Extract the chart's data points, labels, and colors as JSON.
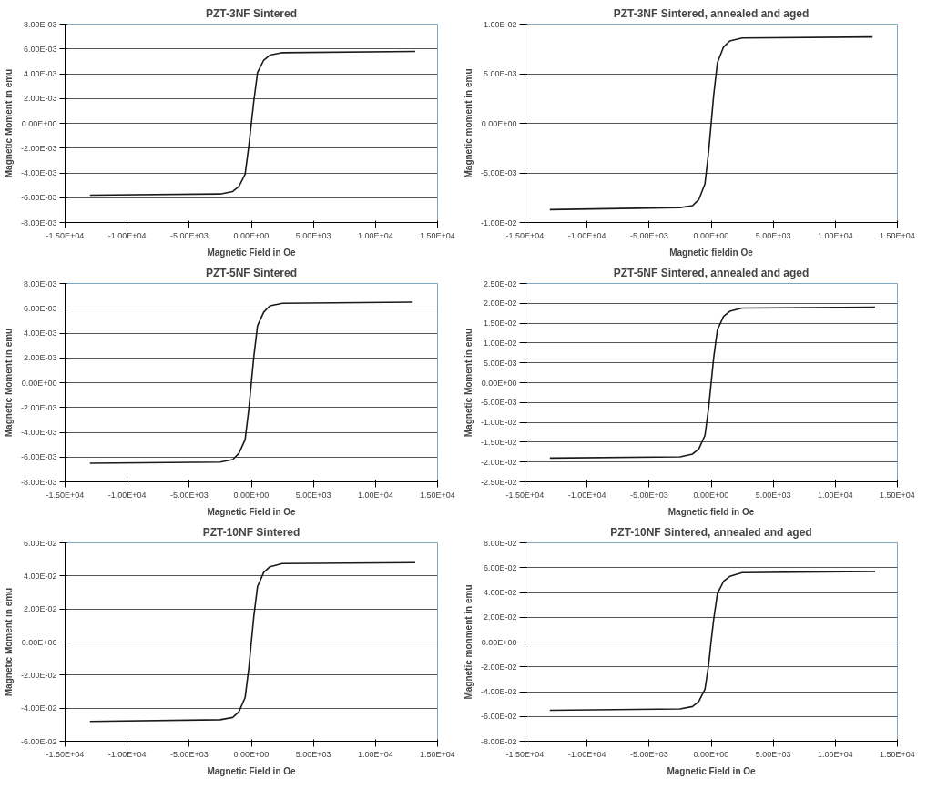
{
  "chart_data": [
    {
      "type": "line",
      "title": "PZT-3NF Sintered",
      "xlabel": "Magnetic Field in Oe",
      "ylabel": "Magnetic Moment in emu",
      "grid": "y",
      "line_style": "solid",
      "xlim": [
        -15000,
        15000
      ],
      "xticks": [
        {
          "value": -15000,
          "label": "-1.50E+04"
        },
        {
          "value": -10000,
          "label": "-1.00E+04"
        },
        {
          "value": -5000,
          "label": "-5.00E+03"
        },
        {
          "value": 0,
          "label": "0.00E+00"
        },
        {
          "value": 5000,
          "label": "5.00E+03"
        },
        {
          "value": 10000,
          "label": "1.00E+04"
        },
        {
          "value": 15000,
          "label": "1.50E+04"
        }
      ],
      "ylim": [
        -0.008,
        0.008
      ],
      "yticks": [
        {
          "value": -0.008,
          "label": "-8.00E-03"
        },
        {
          "value": -0.006,
          "label": "-6.00E-03"
        },
        {
          "value": -0.004,
          "label": "-4.00E-03"
        },
        {
          "value": -0.002,
          "label": "-2.00E-03"
        },
        {
          "value": 0,
          "label": "0.00E+00"
        },
        {
          "value": 0.002,
          "label": "2.00E-03"
        },
        {
          "value": 0.004,
          "label": "4.00E-03"
        },
        {
          "value": 0.006,
          "label": "6.00E-03"
        },
        {
          "value": 0.008,
          "label": "8.00E-03"
        }
      ],
      "series": [
        {
          "color": "#1a1a1a",
          "x": [
            -13000,
            -2500,
            -1500,
            -1000,
            -500,
            -200,
            0,
            200,
            500,
            1000,
            1500,
            2500,
            13200
          ],
          "values": [
            -0.0058,
            -0.0057,
            -0.0055,
            -0.0051,
            -0.0041,
            -0.0018,
            0,
            0.0018,
            0.0041,
            0.0051,
            0.0055,
            0.0057,
            0.0058
          ]
        }
      ]
    },
    {
      "type": "line",
      "title": "PZT-3NF Sintered, annealed and aged",
      "xlabel": "Magnetic fieldin Oe",
      "ylabel": "Magnetic moment in emu",
      "grid": "y",
      "line_style": "solid",
      "xlim": [
        -15000,
        15000
      ],
      "xticks": [
        {
          "value": -15000,
          "label": "-1.50E+04"
        },
        {
          "value": -10000,
          "label": "-1.00E+04"
        },
        {
          "value": -5000,
          "label": "-5.00E+03"
        },
        {
          "value": 0,
          "label": "0.00E+00"
        },
        {
          "value": 5000,
          "label": "5.00E+03"
        },
        {
          "value": 10000,
          "label": "1.00E+04"
        },
        {
          "value": 15000,
          "label": "1.50E+04"
        }
      ],
      "ylim": [
        -0.01,
        0.01
      ],
      "yticks": [
        {
          "value": -0.01,
          "label": "-1.00E-02"
        },
        {
          "value": -0.005,
          "label": "-5.00E-03"
        },
        {
          "value": 0,
          "label": "0.00E+00"
        },
        {
          "value": 0.005,
          "label": "5.00E-03"
        },
        {
          "value": 0.01,
          "label": "1.00E-02"
        }
      ],
      "series": [
        {
          "color": "#1a1a1a",
          "x": [
            -13000,
            -2500,
            -1500,
            -1000,
            -500,
            -200,
            0,
            200,
            500,
            1000,
            1500,
            2500,
            13000
          ],
          "values": [
            -0.0087,
            -0.0085,
            -0.0083,
            -0.0077,
            -0.0061,
            -0.0028,
            0,
            0.0028,
            0.0061,
            0.0077,
            0.0083,
            0.0086,
            0.0087
          ]
        }
      ]
    },
    {
      "type": "line",
      "title": "PZT-5NF Sintered",
      "xlabel": "Magnetic Field in Oe",
      "ylabel": "Magnetic Moment in emu",
      "grid": "y",
      "line_style": "solid",
      "xlim": [
        -15000,
        15000
      ],
      "xticks": [
        {
          "value": -15000,
          "label": "-1.50E+04"
        },
        {
          "value": -10000,
          "label": "-1.00E+04"
        },
        {
          "value": -5000,
          "label": "-5.00E+03"
        },
        {
          "value": 0,
          "label": "0.00E+00"
        },
        {
          "value": 5000,
          "label": "5.00E+03"
        },
        {
          "value": 10000,
          "label": "1.00E+04"
        },
        {
          "value": 15000,
          "label": "1.50E+04"
        }
      ],
      "ylim": [
        -0.008,
        0.008
      ],
      "yticks": [
        {
          "value": -0.008,
          "label": "-8.00E-03"
        },
        {
          "value": -0.006,
          "label": "-6.00E-03"
        },
        {
          "value": -0.004,
          "label": "-4.00E-03"
        },
        {
          "value": -0.002,
          "label": "-2.00E-03"
        },
        {
          "value": 0,
          "label": "0.00E+00"
        },
        {
          "value": 0.002,
          "label": "2.00E-03"
        },
        {
          "value": 0.004,
          "label": "4.00E-03"
        },
        {
          "value": 0.006,
          "label": "6.00E-03"
        },
        {
          "value": 0.008,
          "label": "8.00E-03"
        }
      ],
      "series": [
        {
          "color": "#1a1a1a",
          "x": [
            -13000,
            -2500,
            -1500,
            -1000,
            -500,
            -200,
            0,
            200,
            500,
            1000,
            1500,
            2500,
            13000
          ],
          "values": [
            -0.0065,
            -0.0064,
            -0.0062,
            -0.0057,
            -0.0046,
            -0.0021,
            0,
            0.0021,
            0.0046,
            0.0057,
            0.0062,
            0.0064,
            0.0065
          ]
        }
      ]
    },
    {
      "type": "line",
      "title": "PZT-5NF Sintered, annealed and aged",
      "xlabel": "Magnetic field in Oe",
      "ylabel": "Magnetic Moment in emu",
      "grid": "y",
      "line_style": "solid",
      "xlim": [
        -15000,
        15000
      ],
      "xticks": [
        {
          "value": -15000,
          "label": "-1.50E+04"
        },
        {
          "value": -10000,
          "label": "-1.00E+04"
        },
        {
          "value": -5000,
          "label": "-5.00E+03"
        },
        {
          "value": 0,
          "label": "0.00E+00"
        },
        {
          "value": 5000,
          "label": "5.00E+03"
        },
        {
          "value": 10000,
          "label": "1.00E+04"
        },
        {
          "value": 15000,
          "label": "1.50E+04"
        }
      ],
      "ylim": [
        -0.025,
        0.025
      ],
      "yticks": [
        {
          "value": -0.025,
          "label": "-2.50E-02"
        },
        {
          "value": -0.02,
          "label": "-2.00E-02"
        },
        {
          "value": -0.015,
          "label": "-1.50E-02"
        },
        {
          "value": -0.01,
          "label": "-1.00E-02"
        },
        {
          "value": -0.005,
          "label": "-5.00E-03"
        },
        {
          "value": 0,
          "label": "0.00E+00"
        },
        {
          "value": 0.005,
          "label": "5.00E-03"
        },
        {
          "value": 0.01,
          "label": "1.00E-02"
        },
        {
          "value": 0.015,
          "label": "1.50E-02"
        },
        {
          "value": 0.02,
          "label": "2.00E-02"
        },
        {
          "value": 0.025,
          "label": "2.50E-02"
        }
      ],
      "series": [
        {
          "color": "#1a1a1a",
          "x": [
            -13000,
            -2500,
            -1500,
            -1000,
            -500,
            -200,
            0,
            200,
            500,
            1000,
            1500,
            2500,
            13200
          ],
          "values": [
            -0.019,
            -0.0187,
            -0.018,
            -0.0167,
            -0.0133,
            -0.0062,
            0,
            0.0062,
            0.0133,
            0.0167,
            0.018,
            0.0188,
            0.019
          ]
        }
      ]
    },
    {
      "type": "line",
      "title": "PZT-10NF Sintered",
      "xlabel": "Magnetic Field in Oe",
      "ylabel": "Magnetic Moment in emu",
      "grid": "y",
      "line_style": "solid",
      "xlim": [
        -15000,
        15000
      ],
      "xticks": [
        {
          "value": -15000,
          "label": "-1.50E+04"
        },
        {
          "value": -10000,
          "label": "-1.00E+04"
        },
        {
          "value": -5000,
          "label": "-5.00E+03"
        },
        {
          "value": 0,
          "label": "0.00E+00"
        },
        {
          "value": 5000,
          "label": "5.00E+03"
        },
        {
          "value": 10000,
          "label": "1.00E+04"
        },
        {
          "value": 15000,
          "label": "1.50E+04"
        }
      ],
      "ylim": [
        -0.06,
        0.06
      ],
      "yticks": [
        {
          "value": -0.06,
          "label": "-6.00E-02"
        },
        {
          "value": -0.04,
          "label": "-4.00E-02"
        },
        {
          "value": -0.02,
          "label": "-2.00E-02"
        },
        {
          "value": 0,
          "label": "0.00E+00"
        },
        {
          "value": 0.02,
          "label": "2.00E-02"
        },
        {
          "value": 0.04,
          "label": "4.00E-02"
        },
        {
          "value": 0.06,
          "label": "6.00E-02"
        }
      ],
      "series": [
        {
          "color": "#1a1a1a",
          "x": [
            -13000,
            -2500,
            -1500,
            -1000,
            -500,
            -200,
            0,
            200,
            500,
            1000,
            1500,
            2500,
            13200
          ],
          "values": [
            -0.048,
            -0.047,
            -0.0456,
            -0.0422,
            -0.0336,
            -0.0156,
            0,
            0.0156,
            0.0336,
            0.0422,
            0.0456,
            0.0475,
            0.048
          ]
        }
      ]
    },
    {
      "type": "line",
      "title": "PZT-10NF Sintered, annealed and aged",
      "xlabel": "Magnetic Field in Oe",
      "ylabel": "Magnetic monment in emu",
      "grid": "y",
      "line_style": "solid",
      "xlim": [
        -15000,
        15000
      ],
      "xticks": [
        {
          "value": -15000,
          "label": "-1.50E+04"
        },
        {
          "value": -10000,
          "label": "-1.00E+04"
        },
        {
          "value": -5000,
          "label": "-5.00E+03"
        },
        {
          "value": 0,
          "label": "0.00E+00"
        },
        {
          "value": 5000,
          "label": "5.00E+03"
        },
        {
          "value": 10000,
          "label": "1.00E+04"
        },
        {
          "value": 15000,
          "label": "1.50E+04"
        }
      ],
      "ylim": [
        -0.08,
        0.08
      ],
      "yticks": [
        {
          "value": -0.08,
          "label": "-8.00E-02"
        },
        {
          "value": -0.06,
          "label": "-6.00E-02"
        },
        {
          "value": -0.04,
          "label": "-4.00E-02"
        },
        {
          "value": -0.02,
          "label": "-2.00E-02"
        },
        {
          "value": 0,
          "label": "0.00E+00"
        },
        {
          "value": 0.02,
          "label": "2.00E-02"
        },
        {
          "value": 0.04,
          "label": "4.00E-02"
        },
        {
          "value": 0.06,
          "label": "6.00E-02"
        },
        {
          "value": 0.08,
          "label": "8.00E-02"
        }
      ],
      "series": [
        {
          "color": "#1a1a1a",
          "x": [
            -13000,
            -2500,
            -1500,
            -1000,
            -500,
            -200,
            0,
            200,
            500,
            1000,
            1500,
            2500,
            13200
          ],
          "values": [
            -0.055,
            -0.054,
            -0.052,
            -0.048,
            -0.038,
            -0.018,
            0.001,
            0.018,
            0.039,
            0.049,
            0.053,
            0.056,
            0.057
          ]
        }
      ]
    }
  ]
}
